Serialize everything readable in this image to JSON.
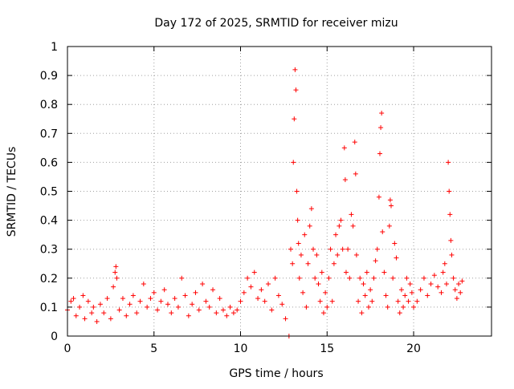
{
  "chart_data": {
    "type": "scatter",
    "title": "Day 172 of 2025, SRMTID for receiver mizu",
    "xlabel": "GPS time / hours",
    "ylabel": "SRMTID / TECUs",
    "xlim": [
      0,
      24.5
    ],
    "ylim": [
      0,
      1
    ],
    "xticks": [
      0,
      5,
      10,
      15,
      20
    ],
    "xtick_labels": [
      "0",
      "5",
      "10",
      "15",
      "20"
    ],
    "yticks": [
      0,
      0.1,
      0.2,
      0.3,
      0.4,
      0.5,
      0.6,
      0.7,
      0.8,
      0.9,
      1
    ],
    "ytick_labels": [
      "0",
      "0.1",
      "0.2",
      "0.3",
      "0.4",
      "0.5",
      "0.6",
      "0.7",
      "0.8",
      "0.9",
      "1"
    ],
    "grid": true,
    "marker": "+",
    "color": "#ff0000",
    "series": [
      {
        "name": "SRMTID",
        "x": [
          0.0,
          0.2,
          0.35,
          0.5,
          0.7,
          0.9,
          1.0,
          1.2,
          1.4,
          1.5,
          1.7,
          1.9,
          2.1,
          2.3,
          2.5,
          2.65,
          2.75,
          2.8,
          2.85,
          3.0,
          3.2,
          3.4,
          3.6,
          3.8,
          4.0,
          4.2,
          4.4,
          4.6,
          4.8,
          5.0,
          5.2,
          5.4,
          5.6,
          5.8,
          6.0,
          6.2,
          6.4,
          6.6,
          6.8,
          7.0,
          7.2,
          7.4,
          7.6,
          7.8,
          8.0,
          8.2,
          8.4,
          8.6,
          8.8,
          9.0,
          9.2,
          9.4,
          9.6,
          9.8,
          10.0,
          10.2,
          10.4,
          10.6,
          10.8,
          11.0,
          11.2,
          11.4,
          11.6,
          11.8,
          12.0,
          12.2,
          12.4,
          12.6,
          12.8,
          12.9,
          13.0,
          13.05,
          13.1,
          13.15,
          13.2,
          13.25,
          13.3,
          13.35,
          13.4,
          13.5,
          13.6,
          13.7,
          13.8,
          13.9,
          14.0,
          14.1,
          14.2,
          14.3,
          14.4,
          14.5,
          14.6,
          14.7,
          14.8,
          14.9,
          15.0,
          15.1,
          15.2,
          15.3,
          15.4,
          15.5,
          15.6,
          15.7,
          15.8,
          15.9,
          16.0,
          16.05,
          16.1,
          16.2,
          16.3,
          16.4,
          16.5,
          16.6,
          16.65,
          16.7,
          16.8,
          16.9,
          17.0,
          17.1,
          17.2,
          17.3,
          17.4,
          17.5,
          17.6,
          17.7,
          17.8,
          17.9,
          18.0,
          18.05,
          18.1,
          18.15,
          18.2,
          18.3,
          18.4,
          18.5,
          18.6,
          18.65,
          18.7,
          18.8,
          18.9,
          19.0,
          19.1,
          19.2,
          19.3,
          19.4,
          19.5,
          19.6,
          19.7,
          19.8,
          19.9,
          20.0,
          20.2,
          20.4,
          20.6,
          20.8,
          21.0,
          21.2,
          21.4,
          21.6,
          21.7,
          21.8,
          21.9,
          22.0,
          22.05,
          22.1,
          22.15,
          22.2,
          22.3,
          22.4,
          22.5,
          22.6,
          22.7,
          22.8
        ],
        "y": [
          0.09,
          0.12,
          0.13,
          0.07,
          0.1,
          0.14,
          0.06,
          0.12,
          0.08,
          0.1,
          0.05,
          0.11,
          0.08,
          0.13,
          0.06,
          0.17,
          0.22,
          0.24,
          0.2,
          0.09,
          0.13,
          0.07,
          0.11,
          0.14,
          0.08,
          0.12,
          0.18,
          0.1,
          0.13,
          0.15,
          0.09,
          0.12,
          0.16,
          0.11,
          0.08,
          0.13,
          0.1,
          0.2,
          0.14,
          0.07,
          0.11,
          0.15,
          0.09,
          0.18,
          0.12,
          0.1,
          0.16,
          0.08,
          0.13,
          0.09,
          0.07,
          0.1,
          0.08,
          0.09,
          0.12,
          0.15,
          0.2,
          0.17,
          0.22,
          0.13,
          0.16,
          0.12,
          0.18,
          0.09,
          0.2,
          0.14,
          0.11,
          0.06,
          0.0,
          0.3,
          0.25,
          0.6,
          0.75,
          0.92,
          0.85,
          0.5,
          0.4,
          0.32,
          0.2,
          0.28,
          0.15,
          0.35,
          0.1,
          0.25,
          0.38,
          0.44,
          0.3,
          0.2,
          0.28,
          0.18,
          0.12,
          0.22,
          0.08,
          0.15,
          0.1,
          0.2,
          0.3,
          0.12,
          0.25,
          0.35,
          0.28,
          0.38,
          0.4,
          0.3,
          0.65,
          0.54,
          0.22,
          0.3,
          0.2,
          0.42,
          0.38,
          0.67,
          0.56,
          0.28,
          0.12,
          0.2,
          0.08,
          0.18,
          0.14,
          0.22,
          0.1,
          0.16,
          0.12,
          0.2,
          0.26,
          0.3,
          0.48,
          0.63,
          0.72,
          0.77,
          0.36,
          0.22,
          0.14,
          0.1,
          0.38,
          0.47,
          0.45,
          0.2,
          0.32,
          0.27,
          0.12,
          0.08,
          0.16,
          0.1,
          0.14,
          0.2,
          0.12,
          0.18,
          0.15,
          0.1,
          0.12,
          0.16,
          0.2,
          0.14,
          0.18,
          0.21,
          0.17,
          0.15,
          0.22,
          0.25,
          0.18,
          0.6,
          0.5,
          0.42,
          0.33,
          0.28,
          0.2,
          0.16,
          0.13,
          0.18,
          0.15,
          0.19
        ]
      }
    ]
  }
}
